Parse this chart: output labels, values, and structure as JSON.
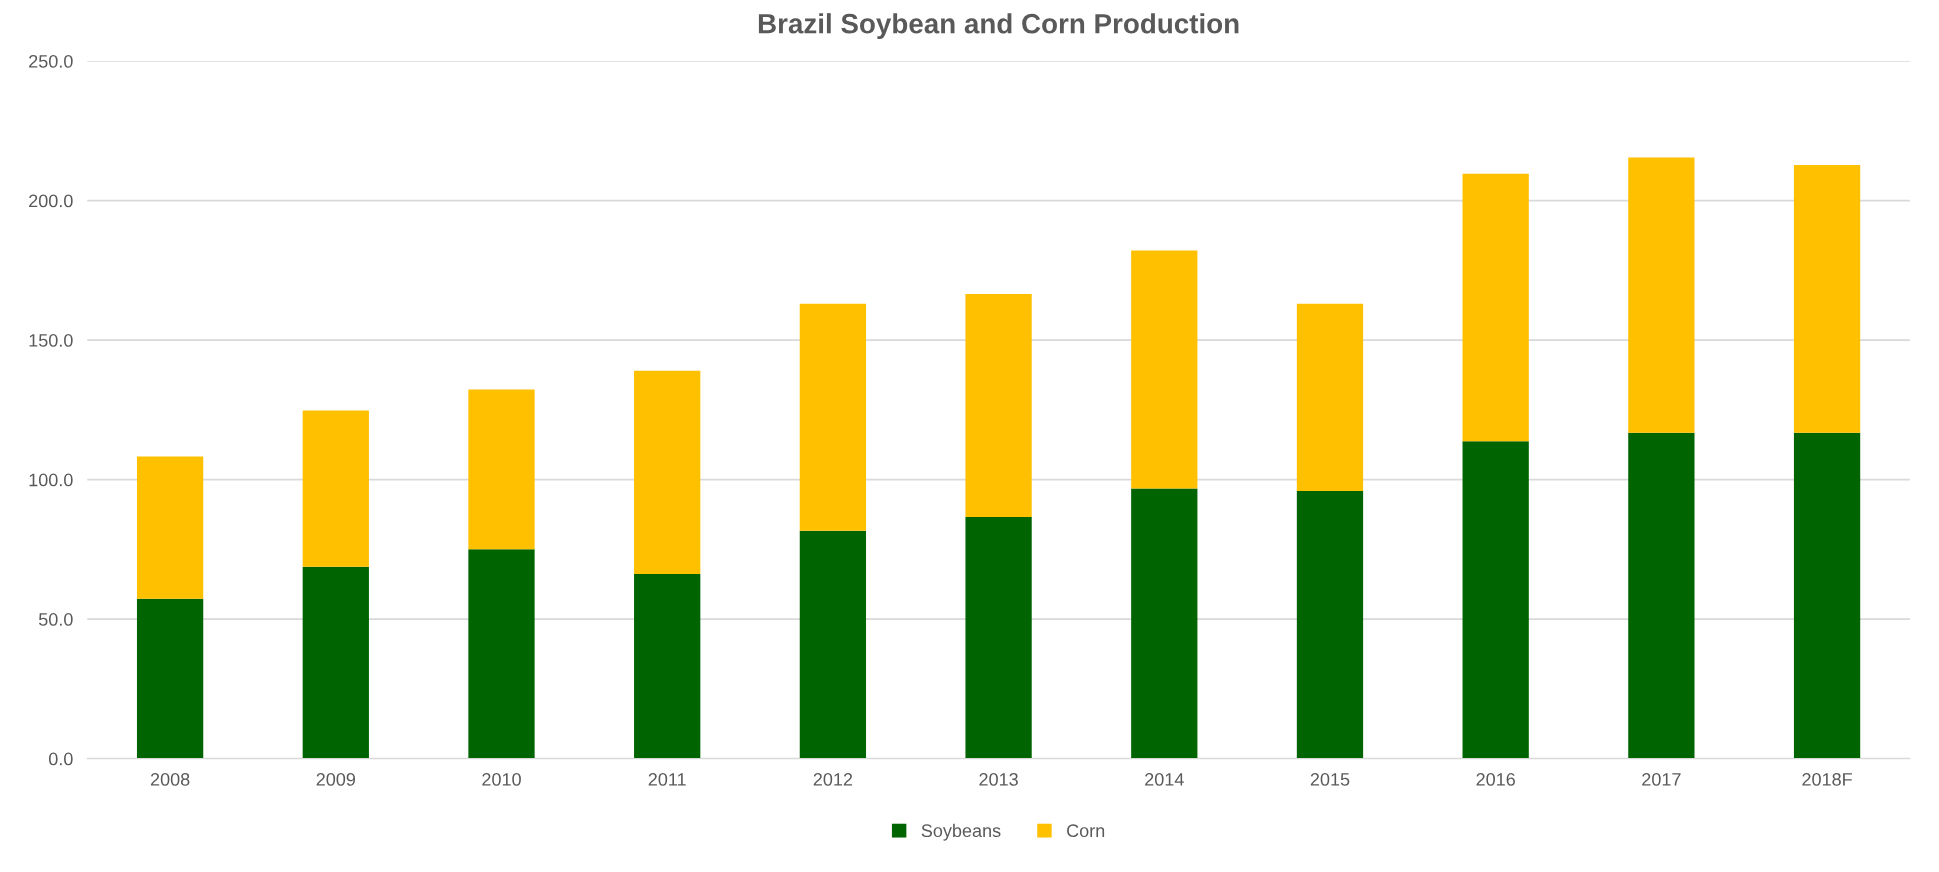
{
  "chart_data": {
    "type": "bar",
    "title": "Brazil Soybean and Corn Production",
    "stacked": true,
    "categories": [
      "2008",
      "2009",
      "2010",
      "2011",
      "2012",
      "2013",
      "2014",
      "2015",
      "2016",
      "2017",
      "2018F"
    ],
    "series": [
      {
        "name": "Soybeans",
        "color": "#006400",
        "values": [
          57.3,
          68.8,
          75.0,
          66.2,
          81.7,
          86.6,
          96.8,
          95.9,
          113.7,
          116.8,
          116.8
        ]
      },
      {
        "name": "Corn",
        "color": "#ffc000",
        "values": [
          51.0,
          56.0,
          57.3,
          72.8,
          81.3,
          79.9,
          85.3,
          67.1,
          95.9,
          98.6,
          95.9
        ]
      }
    ],
    "ylim": [
      0,
      250
    ],
    "yticks": [
      {
        "value": 0,
        "label": "0.0"
      },
      {
        "value": 50,
        "label": "50.0"
      },
      {
        "value": 100,
        "label": "100.0"
      },
      {
        "value": 150,
        "label": "150.0"
      },
      {
        "value": 200,
        "label": "200.0"
      },
      {
        "value": 250,
        "label": "250.0"
      }
    ],
    "grid": "y",
    "legend": "bottom"
  }
}
